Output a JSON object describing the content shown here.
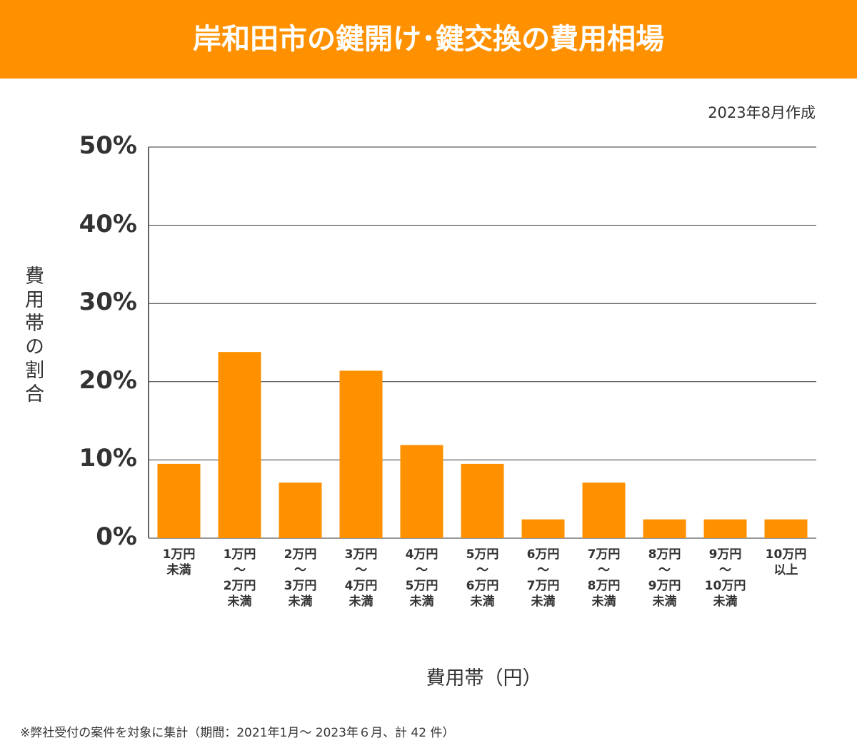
{
  "chart_data": {
    "type": "bar",
    "title": "岸和田市の鍵開け･鍵交換の費用相場",
    "subtitle": "2023年8月作成",
    "y_label": "費用帯の割合",
    "x_label": "費用帯（円）",
    "note": "※弊社受付の案件を対象に集計（期間：2021年1月～ 2023年６月、計 42 件）",
    "categories": [
      "1万円\n未満",
      "1万円\n〜\n2万円\n未満",
      "2万円\n〜\n3万円\n未満",
      "3万円\n〜\n4万円\n未満",
      "4万円\n〜\n5万円\n未満",
      "5万円\n〜\n6万円\n未満",
      "6万円\n〜\n7万円\n未満",
      "7万円\n〜\n8万円\n未満",
      "8万円\n〜\n9万円\n未満",
      "9万円\n〜\n10万円\n未満",
      "10万円\n以上"
    ],
    "values": [
      9.5,
      23.8,
      7.1,
      21.4,
      11.9,
      9.5,
      2.4,
      7.1,
      2.4,
      2.4,
      2.4
    ],
    "color": "#ff9100",
    "ylim": [
      0,
      50
    ],
    "yticks": [
      {
        "value": 0,
        "label": "0%"
      },
      {
        "value": 10,
        "label": "10%"
      },
      {
        "value": 20,
        "label": "20%"
      },
      {
        "value": 30,
        "label": "30%"
      },
      {
        "value": 40,
        "label": "40%"
      },
      {
        "value": 50,
        "label": "50%"
      }
    ],
    "grid": true
  }
}
